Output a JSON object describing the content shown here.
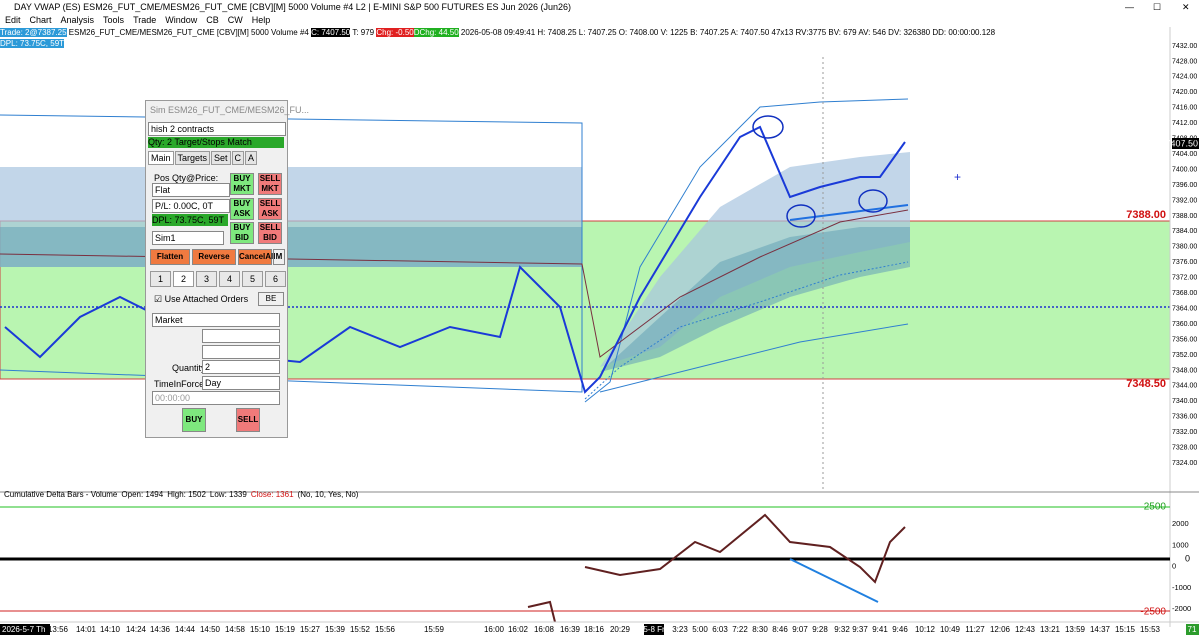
{
  "window": {
    "title": "DAY VWAP (ES) ESM26_FUT_CME/MESM26_FUT_CME [CBV][M]  5000 Volume #4 L2 | E-MINI S&P 500 FUTURES ES Jun 2026 (Jun26)",
    "menu": [
      "Edit",
      "Chart",
      "Analysis",
      "Tools",
      "Trade",
      "Window",
      "CB",
      "CW",
      "Help"
    ]
  },
  "header": {
    "trade": "Trade: 2@7387.25",
    "symbol": "ESM26_FUT_CME/MESM26_FUT_CME [CBV][M]  5000 Volume #4",
    "close": "C: 7407.50",
    "ticks": "T: 979",
    "chg": "Chg: -0.50",
    "dchg": "DChg: 44.50",
    "info": "2026-05-08 09:49:41 H: 7408.25 L: 7407.25 O: 7408.00 V: 1225 B: 7407.25 A: 7407.50 47x13 RV:3775 BV: 679 AV: 546 DV: 326380 DD: 00:00:00.128",
    "dpl": "DPL: 73.75C, 59T"
  },
  "price_axis": {
    "labels": [
      "7432.00",
      "7428.00",
      "7424.00",
      "7420.00",
      "7416.00",
      "7412.00",
      "7408.00",
      "7404.00",
      "7400.00",
      "7396.00",
      "7392.00",
      "7388.00",
      "7384.00",
      "7380.00",
      "7376.00",
      "7372.00",
      "7368.00",
      "7364.00",
      "7360.00",
      "7356.00",
      "7352.00",
      "7348.00",
      "7344.00",
      "7340.00",
      "7336.00",
      "7332.00",
      "7328.00",
      "7324.00"
    ],
    "upper_level": "7388.00",
    "lower_level": "7348.50",
    "last": "7407.50"
  },
  "delta_panel": {
    "title": "Cumulative Delta Bars - Volume",
    "open": "Open: 1494",
    "high": "High: 1502",
    "low": "Low: 1339",
    "close": "Close: 1361",
    "params": "(No, 10, Yes, No)",
    "axis": [
      "2000",
      "1000",
      "0",
      "-1000",
      "-2000"
    ],
    "upper_level": "2500",
    "zero": "0",
    "lower_level": "-2500"
  },
  "time_axis": {
    "date": "2026-5-7 Th",
    "labels": [
      "13:56",
      "14:01",
      "14:10",
      "14:24",
      "14:36",
      "14:44",
      "14:50",
      "14:58",
      "15:10",
      "15:19",
      "15:27",
      "15:39",
      "15:52",
      "15:56",
      "15:59",
      "16:00",
      "16:02",
      "16:08",
      "16:39",
      "18:16",
      "20:29",
      "5-8 Fr",
      "3:23",
      "5:00",
      "6:03",
      "7:22",
      "8:30",
      "8:46",
      "9:07",
      "9:28",
      "9:32",
      "9:37",
      "9:41",
      "9:46",
      "10:12",
      "10:49",
      "11:27",
      "12:06",
      "12:43",
      "13:21",
      "13:59",
      "14:37",
      "15:15",
      "15:53"
    ],
    "corner": "71"
  },
  "order_panel": {
    "title": "Sim ESM26_FUT_CME/MESM26_FU...",
    "strategy": "hish 2 contracts",
    "status": "Qty: 2 Target/Stops Match",
    "tabs": [
      "Main",
      "Targets",
      "Set",
      "C",
      "A"
    ],
    "pos_label": "Pos Qty@Price:",
    "pos": "Flat",
    "pl": "P/L: 0.00C, 0T",
    "dpl": "DPL: 73.75C, 59T",
    "account": "Sim1",
    "buy_mkt": [
      "BUY",
      "MKT"
    ],
    "sell_mkt": [
      "SELL",
      "MKT"
    ],
    "buy_ask": [
      "BUY",
      "ASK"
    ],
    "sell_ask": [
      "SELL",
      "ASK"
    ],
    "buy_bid": [
      "BUY",
      "BID"
    ],
    "sell_bid": [
      "SELL",
      "BID"
    ],
    "flatten": "Flatten",
    "reverse": "Reverse",
    "cancel_all": "CancelAll",
    "m": "M",
    "qty_buttons": [
      "1",
      "2",
      "3",
      "4",
      "5",
      "6"
    ],
    "attached": "Use Attached Orders",
    "be": "BE",
    "order_type": "Market",
    "quantity_label": "Quantity:",
    "quantity": "2",
    "tif_label": "TimeInForce:",
    "tif": "Day",
    "time": "00:00:00",
    "buy": "BUY",
    "sell": "SELL"
  }
}
